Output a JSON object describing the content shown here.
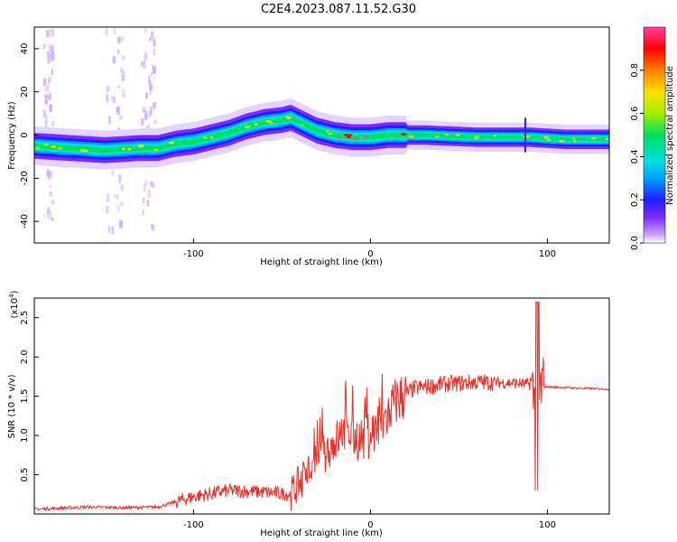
{
  "title": "C2E4.2023.087.11.52.G30",
  "colors": {
    "snr_line": "#e8302a",
    "frame": "#000000"
  },
  "chart_data": [
    {
      "type": "heatmap",
      "xlabel": "Height of straight line (km)",
      "ylabel": "Frequency (Hz)",
      "xlim": [
        -190,
        135
      ],
      "ylim": [
        -50,
        50
      ],
      "xticks": [
        -100,
        0,
        100
      ],
      "yticks": [
        -40,
        -20,
        0,
        20,
        40
      ],
      "xtick_labels": [
        "-100",
        "0",
        "100"
      ],
      "ytick_labels": [
        "-40",
        "-20",
        "0",
        "20",
        "40"
      ],
      "colorbar": {
        "label": "Normalized spectral amplitude",
        "range": [
          0,
          1
        ],
        "ticks": [
          0.0,
          0.2,
          0.4,
          0.6,
          0.8
        ],
        "tick_labels": [
          "0.0",
          "0.2",
          "0.4",
          "0.6",
          "0.8"
        ],
        "colormap": [
          "#ffffff",
          "#c8a0ff",
          "#7a2cff",
          "#2020ff",
          "#00a0ff",
          "#00e0e0",
          "#00e060",
          "#a0f000",
          "#ffe000",
          "#ff8000",
          "#ff0000",
          "#ff40a0"
        ]
      },
      "ridge": {
        "x": [
          -190,
          -170,
          -150,
          -130,
          -120,
          -110,
          -100,
          -90,
          -80,
          -70,
          -60,
          -50,
          -45,
          -40,
          -35,
          -30,
          -20,
          -10,
          0,
          10,
          30,
          60,
          90,
          110,
          135
        ],
        "y": [
          -5,
          -6,
          -7,
          -6,
          -6,
          -4,
          -3,
          -1,
          1,
          4,
          6,
          7,
          8,
          6,
          4,
          2,
          0,
          -1,
          -1,
          0,
          0,
          -1,
          -1,
          -2,
          -2
        ]
      }
    },
    {
      "type": "line",
      "xlabel": "Height of straight line (km)",
      "ylabel": "SNR (10 * v/v)",
      "yscale_label": "(x10",
      "yscale_exp": "4",
      "yscale_close": ")",
      "xlim": [
        -190,
        135
      ],
      "ylim": [
        0,
        27500
      ],
      "xticks": [
        -100,
        0,
        100
      ],
      "yticks": [
        5000,
        10000,
        15000,
        20000,
        25000
      ],
      "xtick_labels": [
        "-100",
        "0",
        "100"
      ],
      "ytick_labels": [
        "0.5",
        "1.0",
        "1.5",
        "2.0",
        "2.5"
      ],
      "envelope": {
        "x": [
          -190,
          -160,
          -140,
          -120,
          -100,
          -80,
          -60,
          -45,
          -35,
          -25,
          -15,
          -5,
          5,
          15,
          25,
          40,
          60,
          80,
          90,
          94,
          97,
          100,
          110,
          120,
          135
        ],
        "y": [
          600,
          900,
          800,
          900,
          2200,
          3000,
          2800,
          2500,
          5500,
          8000,
          10500,
          9500,
          11000,
          14500,
          16000,
          16500,
          16800,
          16700,
          16500,
          14000,
          16200,
          16200,
          16100,
          16000,
          15900
        ]
      }
    }
  ]
}
